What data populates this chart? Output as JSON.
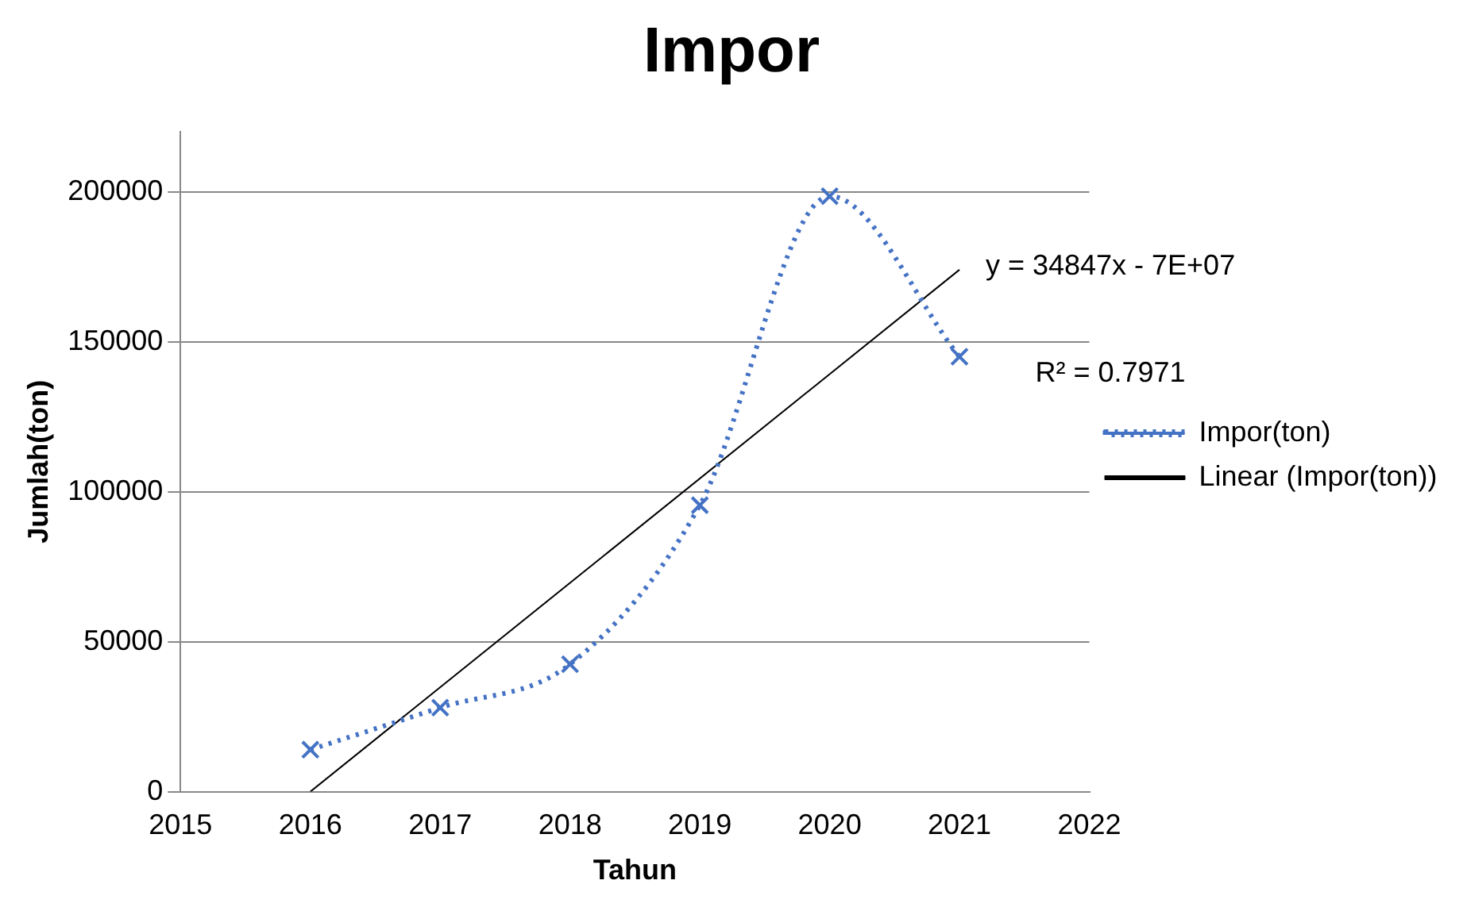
{
  "chart_data": {
    "type": "line",
    "title": "Impor",
    "xlabel": "Tahun",
    "ylabel": "Jumlah(ton)",
    "x": [
      2016,
      2017,
      2018,
      2019,
      2020,
      2021
    ],
    "series": [
      {
        "name": "Impor(ton)",
        "color": "#4472c4",
        "values": [
          14000,
          28000,
          42500,
          95500,
          198500,
          145000
        ],
        "marker": "cross",
        "line_style": "dotted"
      },
      {
        "name": "Linear (Impor(ton))",
        "color": "#000000",
        "x": [
          2016,
          2021
        ],
        "values": [
          0,
          174000
        ],
        "marker": "none",
        "line_style": "solid"
      }
    ],
    "xlim": [
      2015,
      2022
    ],
    "xticks": [
      2015,
      2016,
      2017,
      2018,
      2019,
      2020,
      2021,
      2022
    ],
    "ylim": [
      0,
      220000
    ],
    "yticks": [
      {
        "value": 0,
        "label": "0"
      },
      {
        "value": 50000,
        "label": "50000"
      },
      {
        "value": 100000,
        "label": "100000"
      },
      {
        "value": 150000,
        "label": "150000"
      },
      {
        "value": 200000,
        "label": "200000"
      }
    ],
    "grid": "y",
    "legend": "right",
    "annotations": [
      {
        "text": "y = 34847x - 7E+07",
        "x": 2021,
        "y": 174000
      },
      {
        "text": "R² = 0.7971",
        "x": 2021,
        "y": 150000
      }
    ]
  }
}
